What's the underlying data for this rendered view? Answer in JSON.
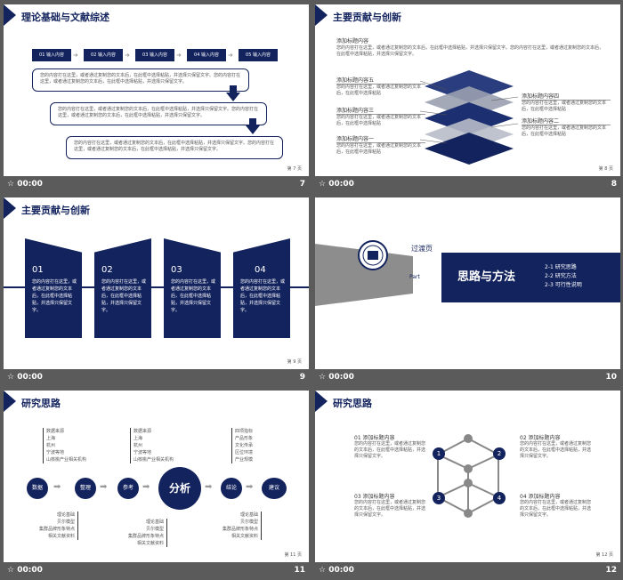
{
  "slides": [
    {
      "title": "理论基础与文献综述",
      "page": "第 7 页",
      "number": "7",
      "steps": [
        "01 输入内容",
        "02 输入内容",
        "03 输入内容",
        "04 输入内容",
        "05 输入内容"
      ],
      "boxes": [
        "您的内容打在这里，或者通过复制您的文本后，在此框中选择粘贴，并选择只保留文字。您的内容打在这里，或者通过复制您的文本后，在此框中选择粘贴，并选择只保留文字。",
        "您的内容打在这里，或者通过复制您的文本后，在此框中选择粘贴，并选择只保留文字。您的内容打在这里，或者通过复制您的文本后，在此框中选择粘贴，并选择只保留文字。",
        "您的内容打在这里，或者通过复制您的文本后，在此框中选择粘贴，并选择只保留文字。您的内容打在这里，或者通过复制您的文本后，在此框中选择粘贴，并选择只保留文字。"
      ]
    },
    {
      "title": "主要贡献与创新",
      "page": "第 8 页",
      "number": "8",
      "intro_title": "添加标题内容",
      "intro_text": "您的内容打在这里，或者通过复制您的文本后，在此框中选择粘贴，并选择只保留文字。您的内容打在这里，或者通过复制您的文本后，在此框中选择粘贴，并选择只保留文字。",
      "left_items": [
        {
          "title": "添加标题内容五",
          "text": "您的内容打在这里，或者通过复制您的文本后，在此框中选择粘贴"
        },
        {
          "title": "添加标题内容三",
          "text": "您的内容打在这里，或者通过复制您的文本后，在此框中选择粘贴"
        },
        {
          "title": "添加标题内容一",
          "text": "您的内容打在这里，或者通过复制您的文本后，在此框中选择粘贴"
        }
      ],
      "right_items": [
        {
          "title": "添加标题内容四",
          "text": "您的内容打在这里，或者通过复制您的文本后，在此框中选择粘贴"
        },
        {
          "title": "添加标题内容二",
          "text": "您的内容打在这里，或者通过复制您的文本后，在此框中选择粘贴"
        }
      ]
    },
    {
      "title": "主要贡献与创新",
      "page": "第 9 页",
      "number": "9",
      "cards": [
        {
          "num": "01",
          "text": "您的内容打在这里，或者通过复制您的文本后，在此框中选择粘贴，并选择只保留文字。"
        },
        {
          "num": "02",
          "text": "您的内容打在这里，或者通过复制您的文本后，在此框中选择粘贴，并选择只保留文字。"
        },
        {
          "num": "03",
          "text": "您的内容打在这里，或者通过复制您的文本后，在此框中选择粘贴，并选择只保留文字。"
        },
        {
          "num": "04",
          "text": "您的内容打在这里，或者通过复制您的文本后，在此框中选择粘贴，并选择只保留文字。"
        }
      ]
    },
    {
      "number": "10",
      "transition": "过渡页",
      "part_label": "Part",
      "part_num": "2",
      "heading": "思路与方法",
      "items": [
        "2-1 研究思路",
        "2-2 研究方法",
        "2-3 可行性说明"
      ]
    },
    {
      "title": "研究思路",
      "page": "第 11 页",
      "number": "11",
      "nodes": [
        "数据",
        "整理",
        "参考",
        "分析",
        "结论",
        "建议"
      ],
      "top_groups": [
        [
          "数据来源",
          "上海",
          "杭州",
          "宁波等地",
          "山核桃产业相关机构"
        ],
        [
          "数据来源",
          "上海",
          "杭州",
          "宁波等地",
          "山核桃产业相关机构"
        ],
        [
          "四项指标",
          "产品形象",
          "文化传承",
          "区位环境",
          "产业规模"
        ]
      ],
      "bottom_groups": [
        [
          "理论基础",
          "贝尔模型",
          "集群品牌形象特点",
          "相关文献资料"
        ],
        [
          "理论基础",
          "贝尔模型",
          "集群品牌形象特点",
          "相关文献资料"
        ],
        [
          "理论基础",
          "贝尔模型",
          "集群品牌形象特点",
          "相关文献资料"
        ]
      ]
    },
    {
      "title": "研究思路",
      "page": "第 12 页",
      "number": "12",
      "items": [
        {
          "title": "01 添加标题内容",
          "text": "您的内容打在这里，或者通过复制您的文本后，在此框中选择粘贴，并选择只保留文字。"
        },
        {
          "title": "02 添加标题内容",
          "text": "您的内容打在这里，或者通过复制您的文本后，在此框中选择粘贴，并选择只保留文字。"
        },
        {
          "title": "03 添加标题内容",
          "text": "您的内容打在这里，或者通过复制您的文本后，在此框中选择粘贴，并选择只保留文字。"
        },
        {
          "title": "04 添加标题内容",
          "text": "您的内容打在这里，或者通过复制您的文本后，在此框中选择粘贴，并选择只保留文字。"
        }
      ],
      "nums": [
        "1",
        "2",
        "3",
        "4"
      ]
    }
  ],
  "timer": "00:00",
  "accent": "#13235e"
}
